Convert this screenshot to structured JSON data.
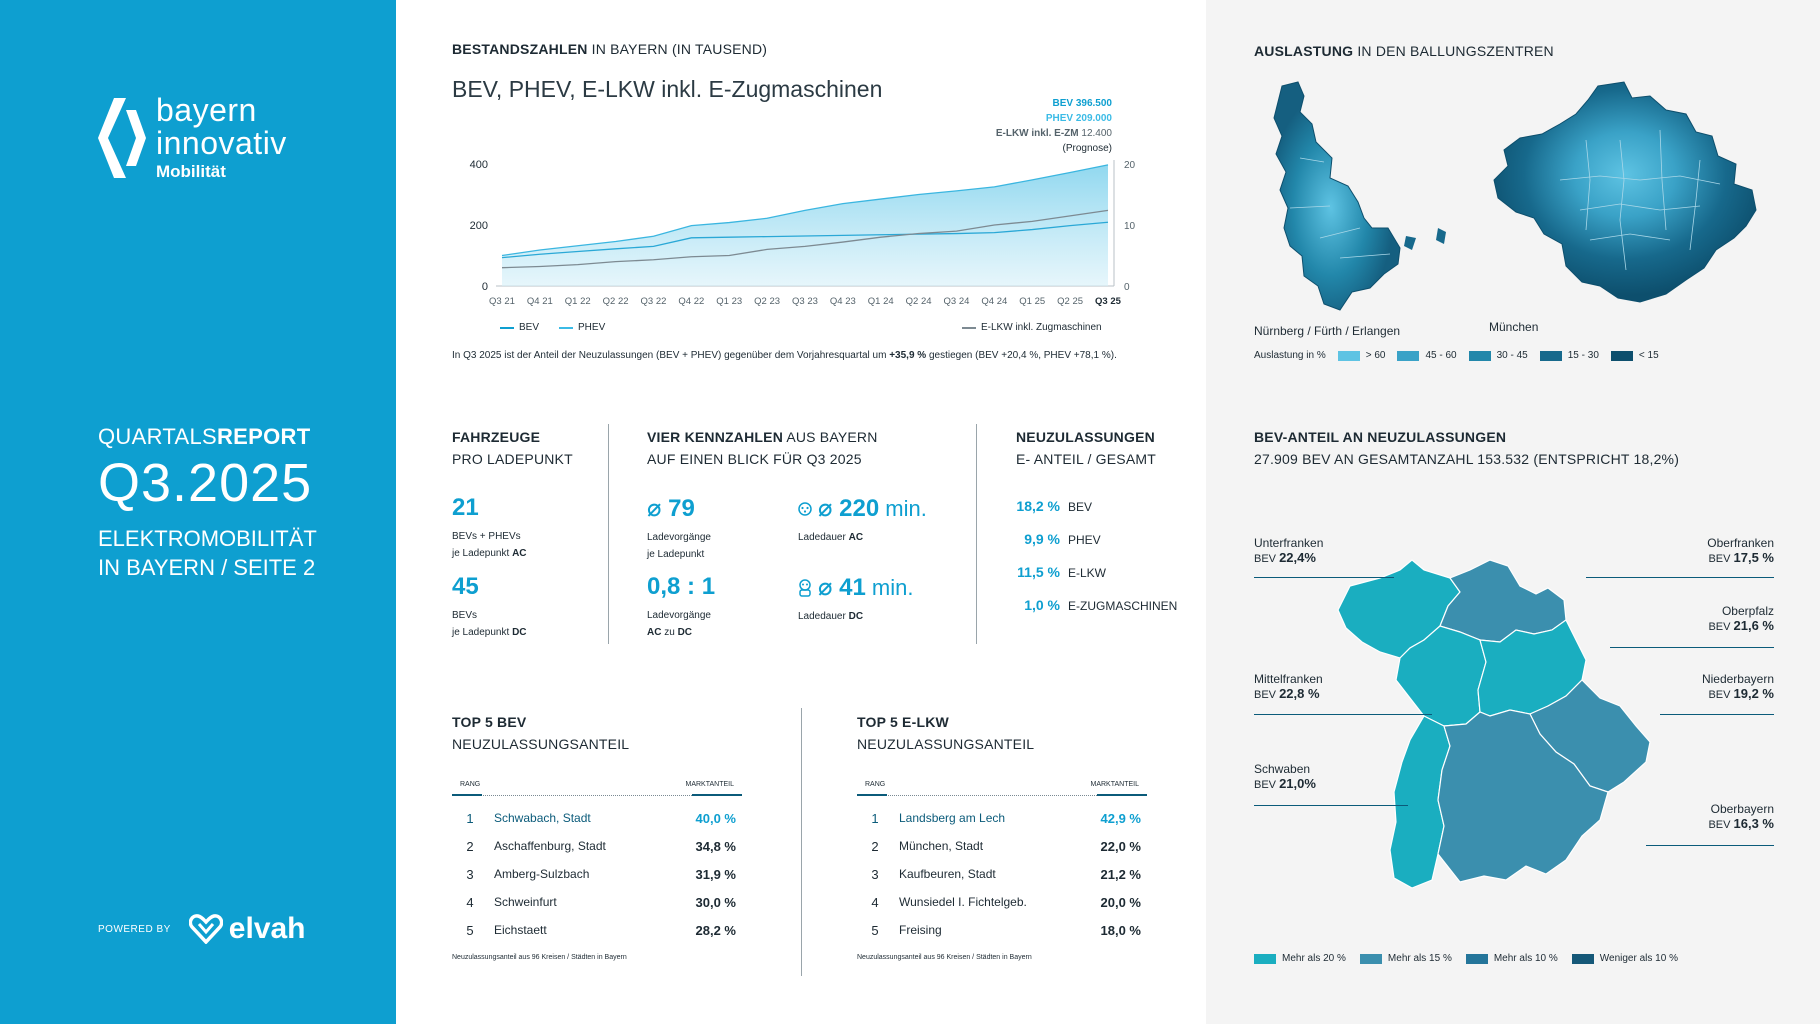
{
  "brand": {
    "line1": "bayern",
    "line2": "innovativ",
    "line3": "Mobilität"
  },
  "report": {
    "kicker_light": "QUARTALS",
    "kicker_bold": "REPORT",
    "quarter": "Q3.2025",
    "subtitle_line1": "ELEKTROMOBILITÄT",
    "subtitle_line2": "IN BAYERN / SEITE 2"
  },
  "powered": {
    "label": "POWERED BY",
    "name": "elvah"
  },
  "stock": {
    "title_bold": "BESTANDSZAHLEN",
    "title_rest": " IN BAYERN (IN TAUSEND)",
    "headline": "BEV, PHEV, E-LKW inkl. E-Zugmaschinen",
    "annot_bev": "BEV 396.500",
    "annot_phev": "PHEV 209.000",
    "annot_elkw_label": "E-LKW inkl. E-ZM",
    "annot_elkw_value": "12.400",
    "annot_prognose": "(Prognose)",
    "legend_bev": "BEV",
    "legend_phev": "PHEV",
    "legend_elkw": "E-LKW inkl. Zugmaschinen",
    "footnote_a": "In Q3 2025 ist der Anteil der Neuzulassungen (BEV + PHEV) gegenüber dem Vorjahresquartal um ",
    "footnote_b": "+35,9 %",
    "footnote_c": " gestiegen (BEV +20,4 %, PHEV +78,1 %)."
  },
  "chart_data": {
    "type": "area",
    "categories": [
      "Q3 21",
      "Q4 21",
      "Q1 22",
      "Q2 22",
      "Q3 22",
      "Q4 22",
      "Q1 23",
      "Q2 23",
      "Q3 23",
      "Q4 23",
      "Q1 24",
      "Q2 24",
      "Q3 24",
      "Q4 24",
      "Q1 25",
      "Q2 25",
      "Q3 25"
    ],
    "left_ticks": [
      "0",
      "200",
      "400"
    ],
    "right_ticks": [
      "0",
      "10",
      "20"
    ],
    "ylim": [
      0,
      400
    ],
    "y2lim": [
      0,
      20
    ],
    "series": [
      {
        "name": "BEV",
        "axis": "left",
        "color": "#5bbfe0",
        "values": [
          100,
          118,
          132,
          146,
          163,
          198,
          208,
          222,
          248,
          270,
          285,
          300,
          312,
          325,
          348,
          372,
          397
        ]
      },
      {
        "name": "PHEV",
        "axis": "left",
        "color": "#2aa8d6",
        "values": [
          93,
          104,
          113,
          122,
          130,
          158,
          160,
          162,
          164,
          166,
          168,
          170,
          172,
          175,
          185,
          198,
          209
        ]
      },
      {
        "name": "E-LKW inkl. Zugmaschinen",
        "axis": "right",
        "color": "#7d8a92",
        "values": [
          3.0,
          3.2,
          3.5,
          4.0,
          4.3,
          4.8,
          5.0,
          6.0,
          6.5,
          7.2,
          8.0,
          8.6,
          9.0,
          10.0,
          10.6,
          11.5,
          12.4
        ]
      }
    ]
  },
  "util": {
    "title_bold": "AUSLASTUNG",
    "title_rest": " IN DEN BALLUNGSZENTREN",
    "label_nuernberg": "Nürnberg / Fürth / Erlangen",
    "label_muenchen": "München",
    "legend_title": "Auslastung in %",
    "legend": [
      {
        "label": "> 60",
        "color": "#5ec3e3"
      },
      {
        "label": "45 - 60",
        "color": "#3aa2c7"
      },
      {
        "label": "30 - 45",
        "color": "#2287aa"
      },
      {
        "label": "15 - 30",
        "color": "#17698c"
      },
      {
        "label": "< 15",
        "color": "#0d4f6d"
      }
    ]
  },
  "fahrzeuge": {
    "title_bold": "FAHRZEUGE",
    "title_rest": "PRO LADEPUNKT",
    "v1": "21",
    "l1a": "BEVs  + PHEVs",
    "l1b_pre": "je Ladepunkt ",
    "l1b_bold": "AC",
    "v2": "45",
    "l2a": "BEVs",
    "l2b_pre": "je Ladepunkt ",
    "l2b_bold": "DC"
  },
  "kennzahlen": {
    "title_bold": "VIER KENNZAHLEN",
    "title_rest": " AUS BAYERN",
    "title_line2": "AUF EINEN BLICK FÜR Q3 2025",
    "a_val": "⌀ 79",
    "a_l1": "Ladevorgänge",
    "a_l2": "je Ladepunkt",
    "b_val": "⌀ 220",
    "b_unit": " min.",
    "b_l1_pre": "Ladedauer ",
    "b_l1_bold": "AC",
    "c_val": "0,8 : 1",
    "c_l1": "Ladevorgänge",
    "c_l2_bold": "AC",
    "c_l2_mid": " zu ",
    "c_l2_bold2": "DC",
    "d_val": "⌀ 41",
    "d_unit": " min.",
    "d_l1_pre": "Ladedauer ",
    "d_l1_bold": "DC"
  },
  "neuzul": {
    "title_bold": "NEUZULASSUNGEN",
    "title_rest": "E- ANTEIL / GESAMT",
    "rows": [
      {
        "v": "18,2 %",
        "n": "BEV"
      },
      {
        "v": "9,9 %",
        "n": "PHEV"
      },
      {
        "v": "11,5 %",
        "n": "E-LKW"
      },
      {
        "v": "1,0 %",
        "n": "E-ZUGMASCHINEN"
      }
    ]
  },
  "top_bev": {
    "title_bold": "TOP 5 BEV",
    "title_rest": "NEUZULASSUNGSANTEIL",
    "h_rang": "RANG",
    "h_markt": "MARKTANTEIL",
    "rows": [
      {
        "r": "1",
        "c": "Schwabach, Stadt",
        "m": "40,0 %"
      },
      {
        "r": "2",
        "c": "Aschaffenburg, Stadt",
        "m": "34,8 %"
      },
      {
        "r": "3",
        "c": "Amberg-Sulzbach",
        "m": "31,9 %"
      },
      {
        "r": "4",
        "c": "Schweinfurt",
        "m": "30,0 %"
      },
      {
        "r": "5",
        "c": "Eichstaett",
        "m": "28,2 %"
      }
    ],
    "foot": "Neuzulassungsanteil aus 96 Kreisen / Städten in Bayern"
  },
  "top_elkw": {
    "title_bold": "TOP 5 E-LKW",
    "title_rest": "NEUZULASSUNGSANTEIL",
    "h_rang": "RANG",
    "h_markt": "MARKTANTEIL",
    "rows": [
      {
        "r": "1",
        "c": "Landsberg am Lech",
        "m": "42,9 %"
      },
      {
        "r": "2",
        "c": "München, Stadt",
        "m": "22,0 %"
      },
      {
        "r": "3",
        "c": "Kaufbeuren, Stadt",
        "m": "21,2 %"
      },
      {
        "r": "4",
        "c": "Wunsiedel I. Fichtelgeb.",
        "m": "20,0 %"
      },
      {
        "r": "5",
        "c": "Freising",
        "m": "18,0 %"
      }
    ],
    "foot": "Neuzulassungsanteil aus 96 Kreisen / Städten in Bayern"
  },
  "bevanteil": {
    "title": "BEV-ANTEIL AN NEUZULASSUNGEN",
    "subtitle": "27.909 BEV AN GESAMTANZAHL 153.532 (ENTSPRICHT 18,2%)",
    "bev_prefix": "BEV",
    "regions": {
      "unterfranken": {
        "name": "Unterfranken",
        "v": "22,4%"
      },
      "oberfranken": {
        "name": "Oberfranken",
        "v": "17,5 %"
      },
      "oberpfalz": {
        "name": "Oberpfalz",
        "v": "21,6 %"
      },
      "mittelfranken": {
        "name": "Mittelfranken",
        "v": "22,8 %"
      },
      "niederbayern": {
        "name": "Niederbayern",
        "v": "19,2 %"
      },
      "schwaben": {
        "name": "Schwaben",
        "v": "21,0%"
      },
      "oberbayern": {
        "name": "Oberbayern",
        "v": "16,3 %"
      }
    },
    "legend": [
      {
        "label": "Mehr als 20 %",
        "color": "#1aaec0"
      },
      {
        "label": "Mehr als 15 %",
        "color": "#3b8fae"
      },
      {
        "label": "Mehr als 10 %",
        "color": "#24759a"
      },
      {
        "label": "Weniger als 10 %",
        "color": "#155878"
      }
    ]
  }
}
